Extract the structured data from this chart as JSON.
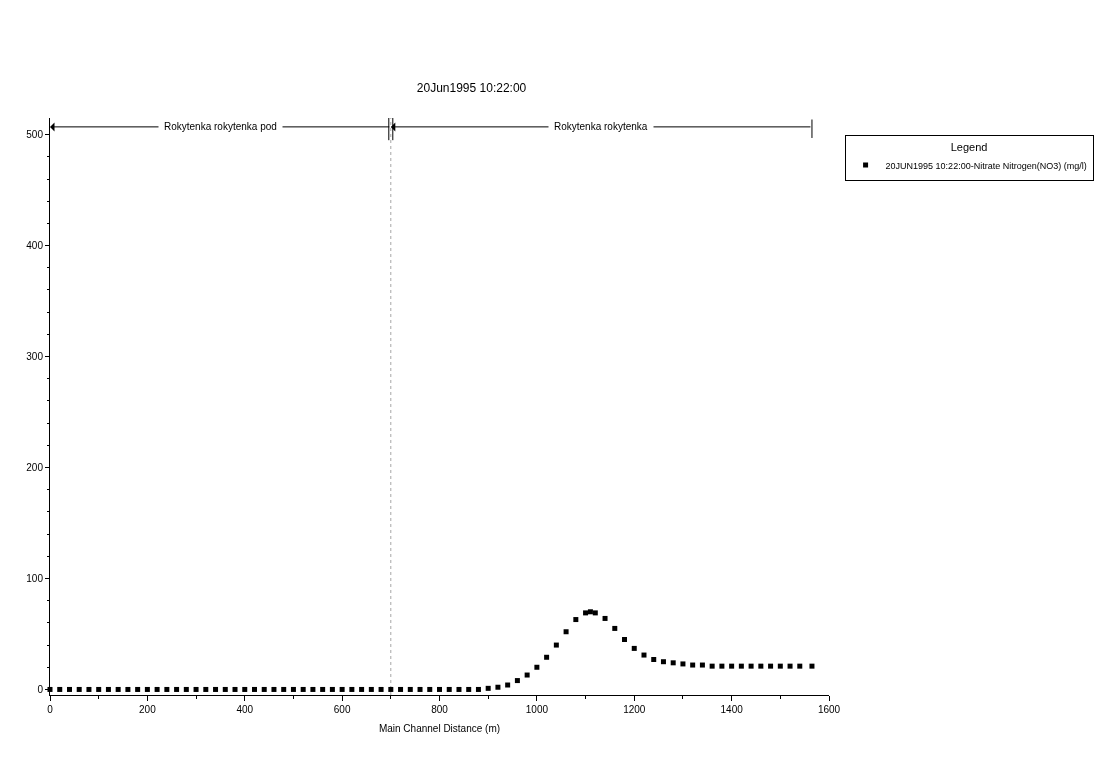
{
  "chart_data": {
    "type": "scatter",
    "title": "20Jun1995 10:22:00",
    "xlabel": "Main Channel Distance (m)",
    "legend_title": "Legend",
    "legend": "top right",
    "marker": "square",
    "x": [
      0,
      20,
      40,
      60,
      80,
      100,
      120,
      140,
      160,
      180,
      200,
      220,
      240,
      260,
      280,
      300,
      320,
      340,
      360,
      380,
      400,
      420,
      440,
      460,
      480,
      500,
      520,
      540,
      560,
      580,
      600,
      620,
      640,
      660,
      680,
      700,
      720,
      740,
      760,
      780,
      800,
      820,
      840,
      860,
      880,
      900,
      920,
      940,
      960,
      980,
      1000,
      1020,
      1040,
      1060,
      1080,
      1100,
      1110,
      1120,
      1140,
      1160,
      1180,
      1200,
      1220,
      1240,
      1260,
      1280,
      1300,
      1320,
      1340,
      1360,
      1380,
      1400,
      1420,
      1440,
      1460,
      1480,
      1500,
      1520,
      1540,
      1565
    ],
    "series": [
      {
        "name": "20JUN1995 10:22:00-Nitrate Nitrogen(NO3) (mg/l)",
        "color": "#000000",
        "values": [
          0,
          0,
          0,
          0,
          0,
          0,
          0,
          0,
          0,
          0,
          0,
          0,
          0,
          0,
          0,
          0,
          0,
          0,
          0,
          0,
          0,
          0,
          0,
          0,
          0,
          0,
          0,
          0,
          0,
          0,
          0,
          0,
          0,
          0,
          0,
          0,
          0,
          0,
          0,
          0,
          0,
          0,
          0,
          0,
          0,
          1,
          2,
          4,
          8,
          13,
          20,
          29,
          40,
          52,
          63,
          69,
          70,
          69,
          64,
          55,
          45,
          37,
          31,
          27,
          25,
          24,
          23,
          22,
          22,
          21,
          21,
          21,
          21,
          21,
          21,
          21,
          21,
          21,
          21,
          21
        ]
      }
    ],
    "xlim": [
      0,
      1600
    ],
    "xticks": [
      0,
      200,
      400,
      600,
      800,
      1000,
      1200,
      1400,
      1600
    ],
    "ylim": [
      -5,
      515
    ],
    "yticks": [
      0,
      100,
      200,
      300,
      400,
      500
    ],
    "ref_lines": [
      {
        "axis": "x",
        "value": 700,
        "color": "#000000",
        "line_style": "dotted"
      }
    ],
    "annotations": [
      "Rokytenka rokytenka pod",
      "Rokytenka rokytenka"
    ]
  }
}
